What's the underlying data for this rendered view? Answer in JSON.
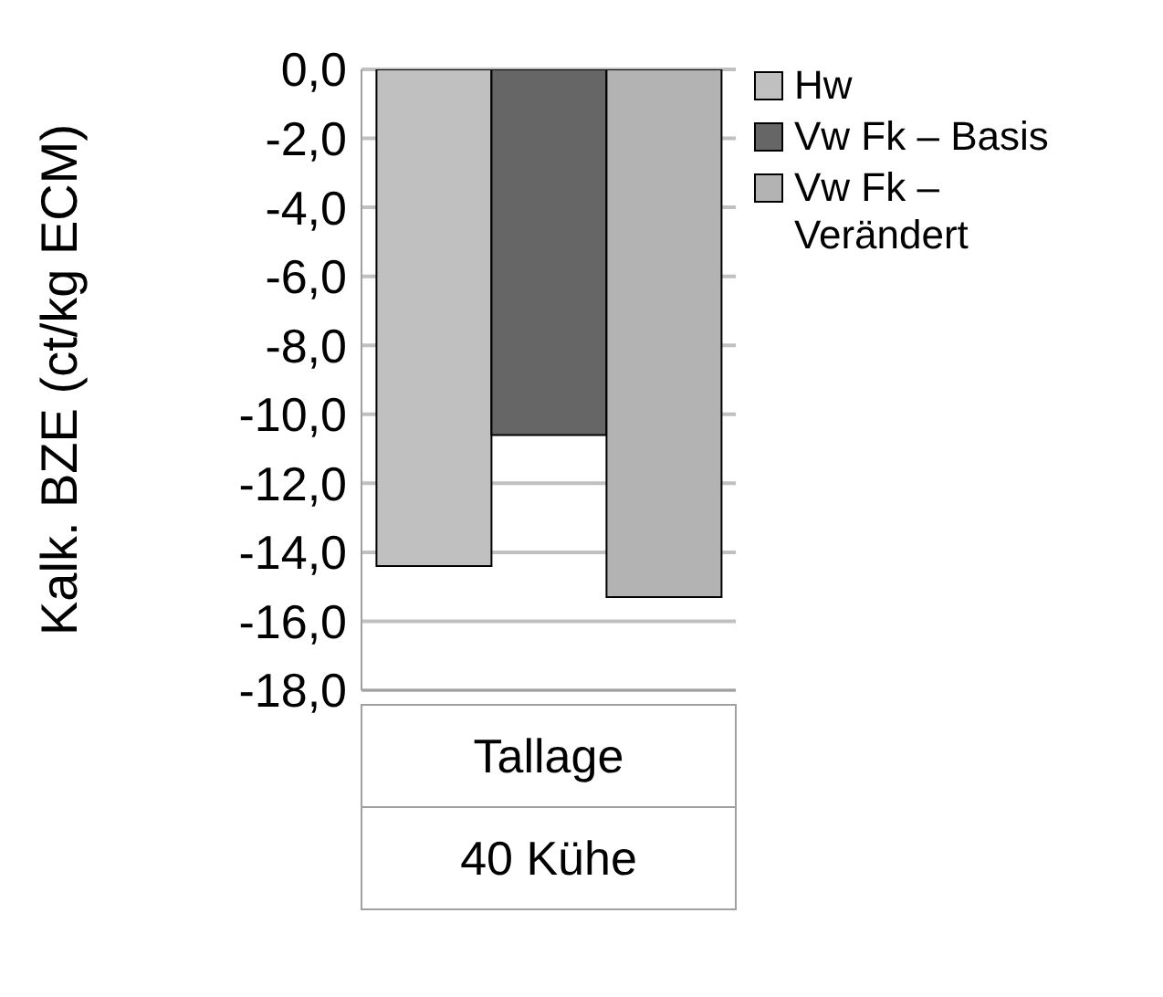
{
  "chart_data": {
    "type": "bar",
    "ylabel": "Kalk. BZE (ct/kg ECM)",
    "categories": [
      "Tallage\n40 Kühe"
    ],
    "series": [
      {
        "name": "Hw",
        "color": "#c0c0c0",
        "values": [
          -14.4
        ]
      },
      {
        "name": "Vw Fk – Basis",
        "color": "#666666",
        "values": [
          -10.6
        ]
      },
      {
        "name": "Vw Fk – Verändert",
        "color": "#b3b3b3",
        "values": [
          -15.3
        ]
      }
    ],
    "ylim": [
      -18,
      0
    ],
    "yticks": [
      {
        "value": 0,
        "label": "0,0"
      },
      {
        "value": -2,
        "label": "-2,0"
      },
      {
        "value": -4,
        "label": "-4,0"
      },
      {
        "value": -6,
        "label": "-6,0"
      },
      {
        "value": -8,
        "label": "-8,0"
      },
      {
        "value": -10,
        "label": "-10,0"
      },
      {
        "value": -12,
        "label": "-12,0"
      },
      {
        "value": -14,
        "label": "-14,0"
      },
      {
        "value": -16,
        "label": "-16,0"
      },
      {
        "value": -18,
        "label": "-18,0"
      }
    ],
    "grid": "y",
    "legend": "top right"
  }
}
